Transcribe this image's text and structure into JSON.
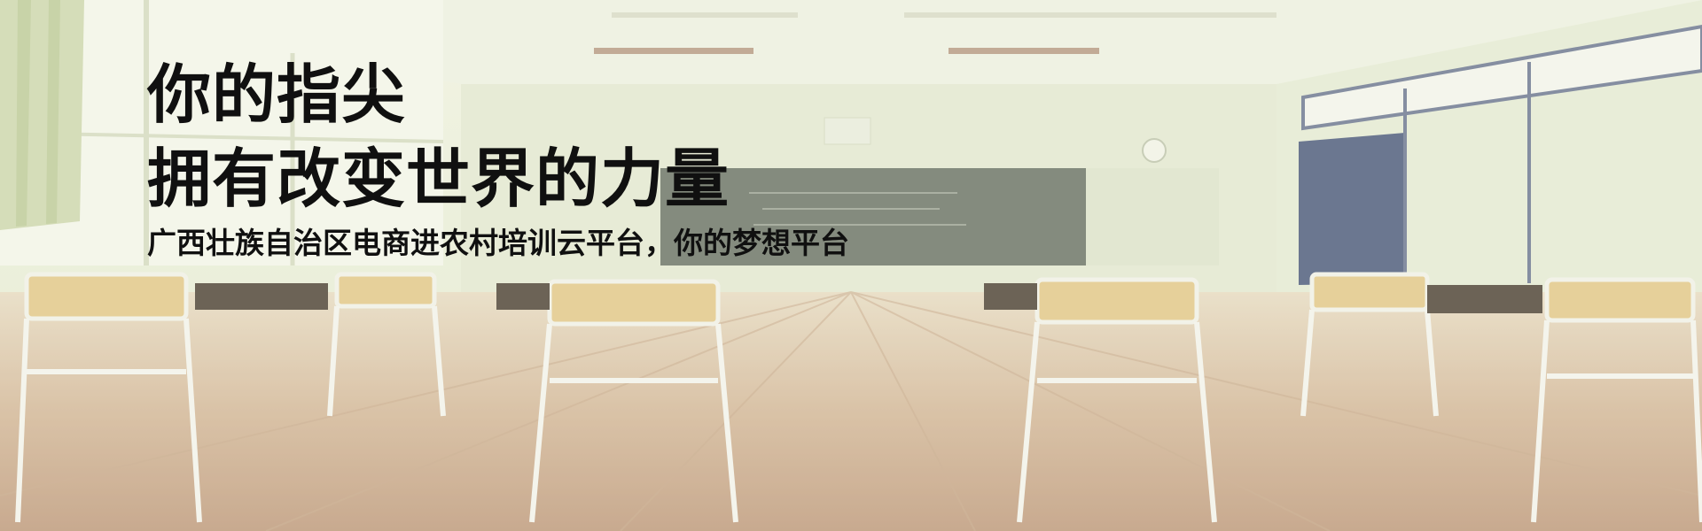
{
  "banner": {
    "title_line1": "你的指尖",
    "title_line2": "拥有改变世界的力量",
    "subtitle": "广西壮族自治区电商进农村培训云平台，你的梦想平台"
  },
  "scene": {
    "background_image": "classroom-photo",
    "tint": "#e4ebd2"
  }
}
